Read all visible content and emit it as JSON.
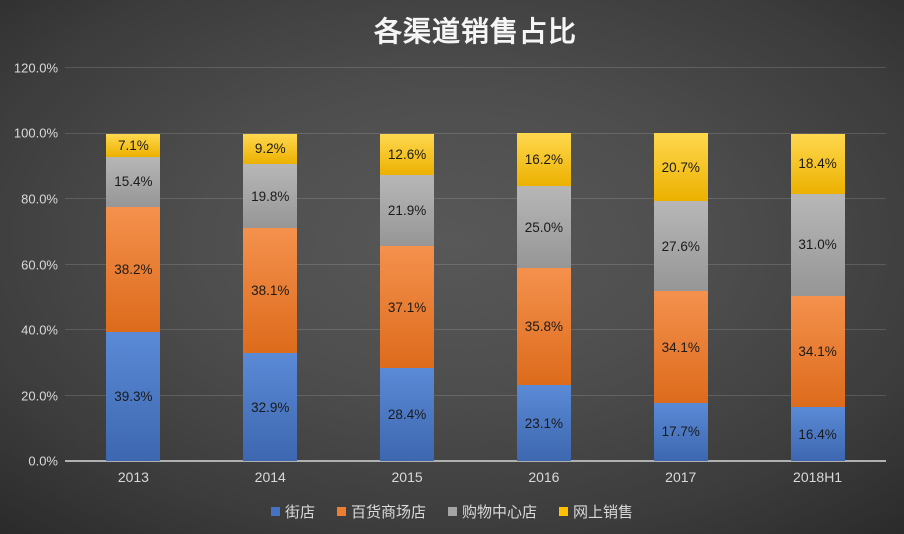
{
  "chart_data": {
    "type": "bar",
    "subtype": "stacked-100-percent",
    "title": "各渠道销售占比",
    "categories": [
      "2013",
      "2014",
      "2015",
      "2016",
      "2017",
      "2018H1"
    ],
    "series": [
      {
        "name": "街店",
        "color": "#4472C4",
        "gradient_top": "#5b8ad6",
        "gradient_bottom": "#3d67b0",
        "values": [
          39.3,
          32.9,
          28.4,
          23.1,
          17.7,
          16.4
        ]
      },
      {
        "name": "百货商场店",
        "color": "#ED7D31",
        "gradient_top": "#f4914d",
        "gradient_bottom": "#dd6b1c",
        "values": [
          38.2,
          38.1,
          37.1,
          35.8,
          34.1,
          34.1
        ]
      },
      {
        "name": "购物中心店",
        "color": "#A5A5A5",
        "gradient_top": "#b7b7b7",
        "gradient_bottom": "#969696",
        "values": [
          15.4,
          19.8,
          21.9,
          25.0,
          27.6,
          31.0
        ]
      },
      {
        "name": "网上销售",
        "color": "#FFC000",
        "gradient_top": "#ffd84f",
        "gradient_bottom": "#ecb100",
        "values": [
          7.1,
          9.2,
          12.6,
          16.2,
          20.7,
          18.4
        ]
      }
    ],
    "y_axis": {
      "min": 0,
      "max": 120,
      "step": 20,
      "tick_labels": [
        "0.0%",
        "20.0%",
        "40.0%",
        "60.0%",
        "80.0%",
        "100.0%",
        "120.0%"
      ]
    },
    "data_label_format": "0.0%",
    "data_label_color": "#1a1a1a",
    "legend_position": "bottom",
    "grid": true,
    "colors": {
      "background_center": "#565656",
      "background_edge": "#262626",
      "axis_line": "#b0b0b0",
      "tick_text": "#d9d9d9",
      "title_text": "#f5f5f5"
    }
  }
}
